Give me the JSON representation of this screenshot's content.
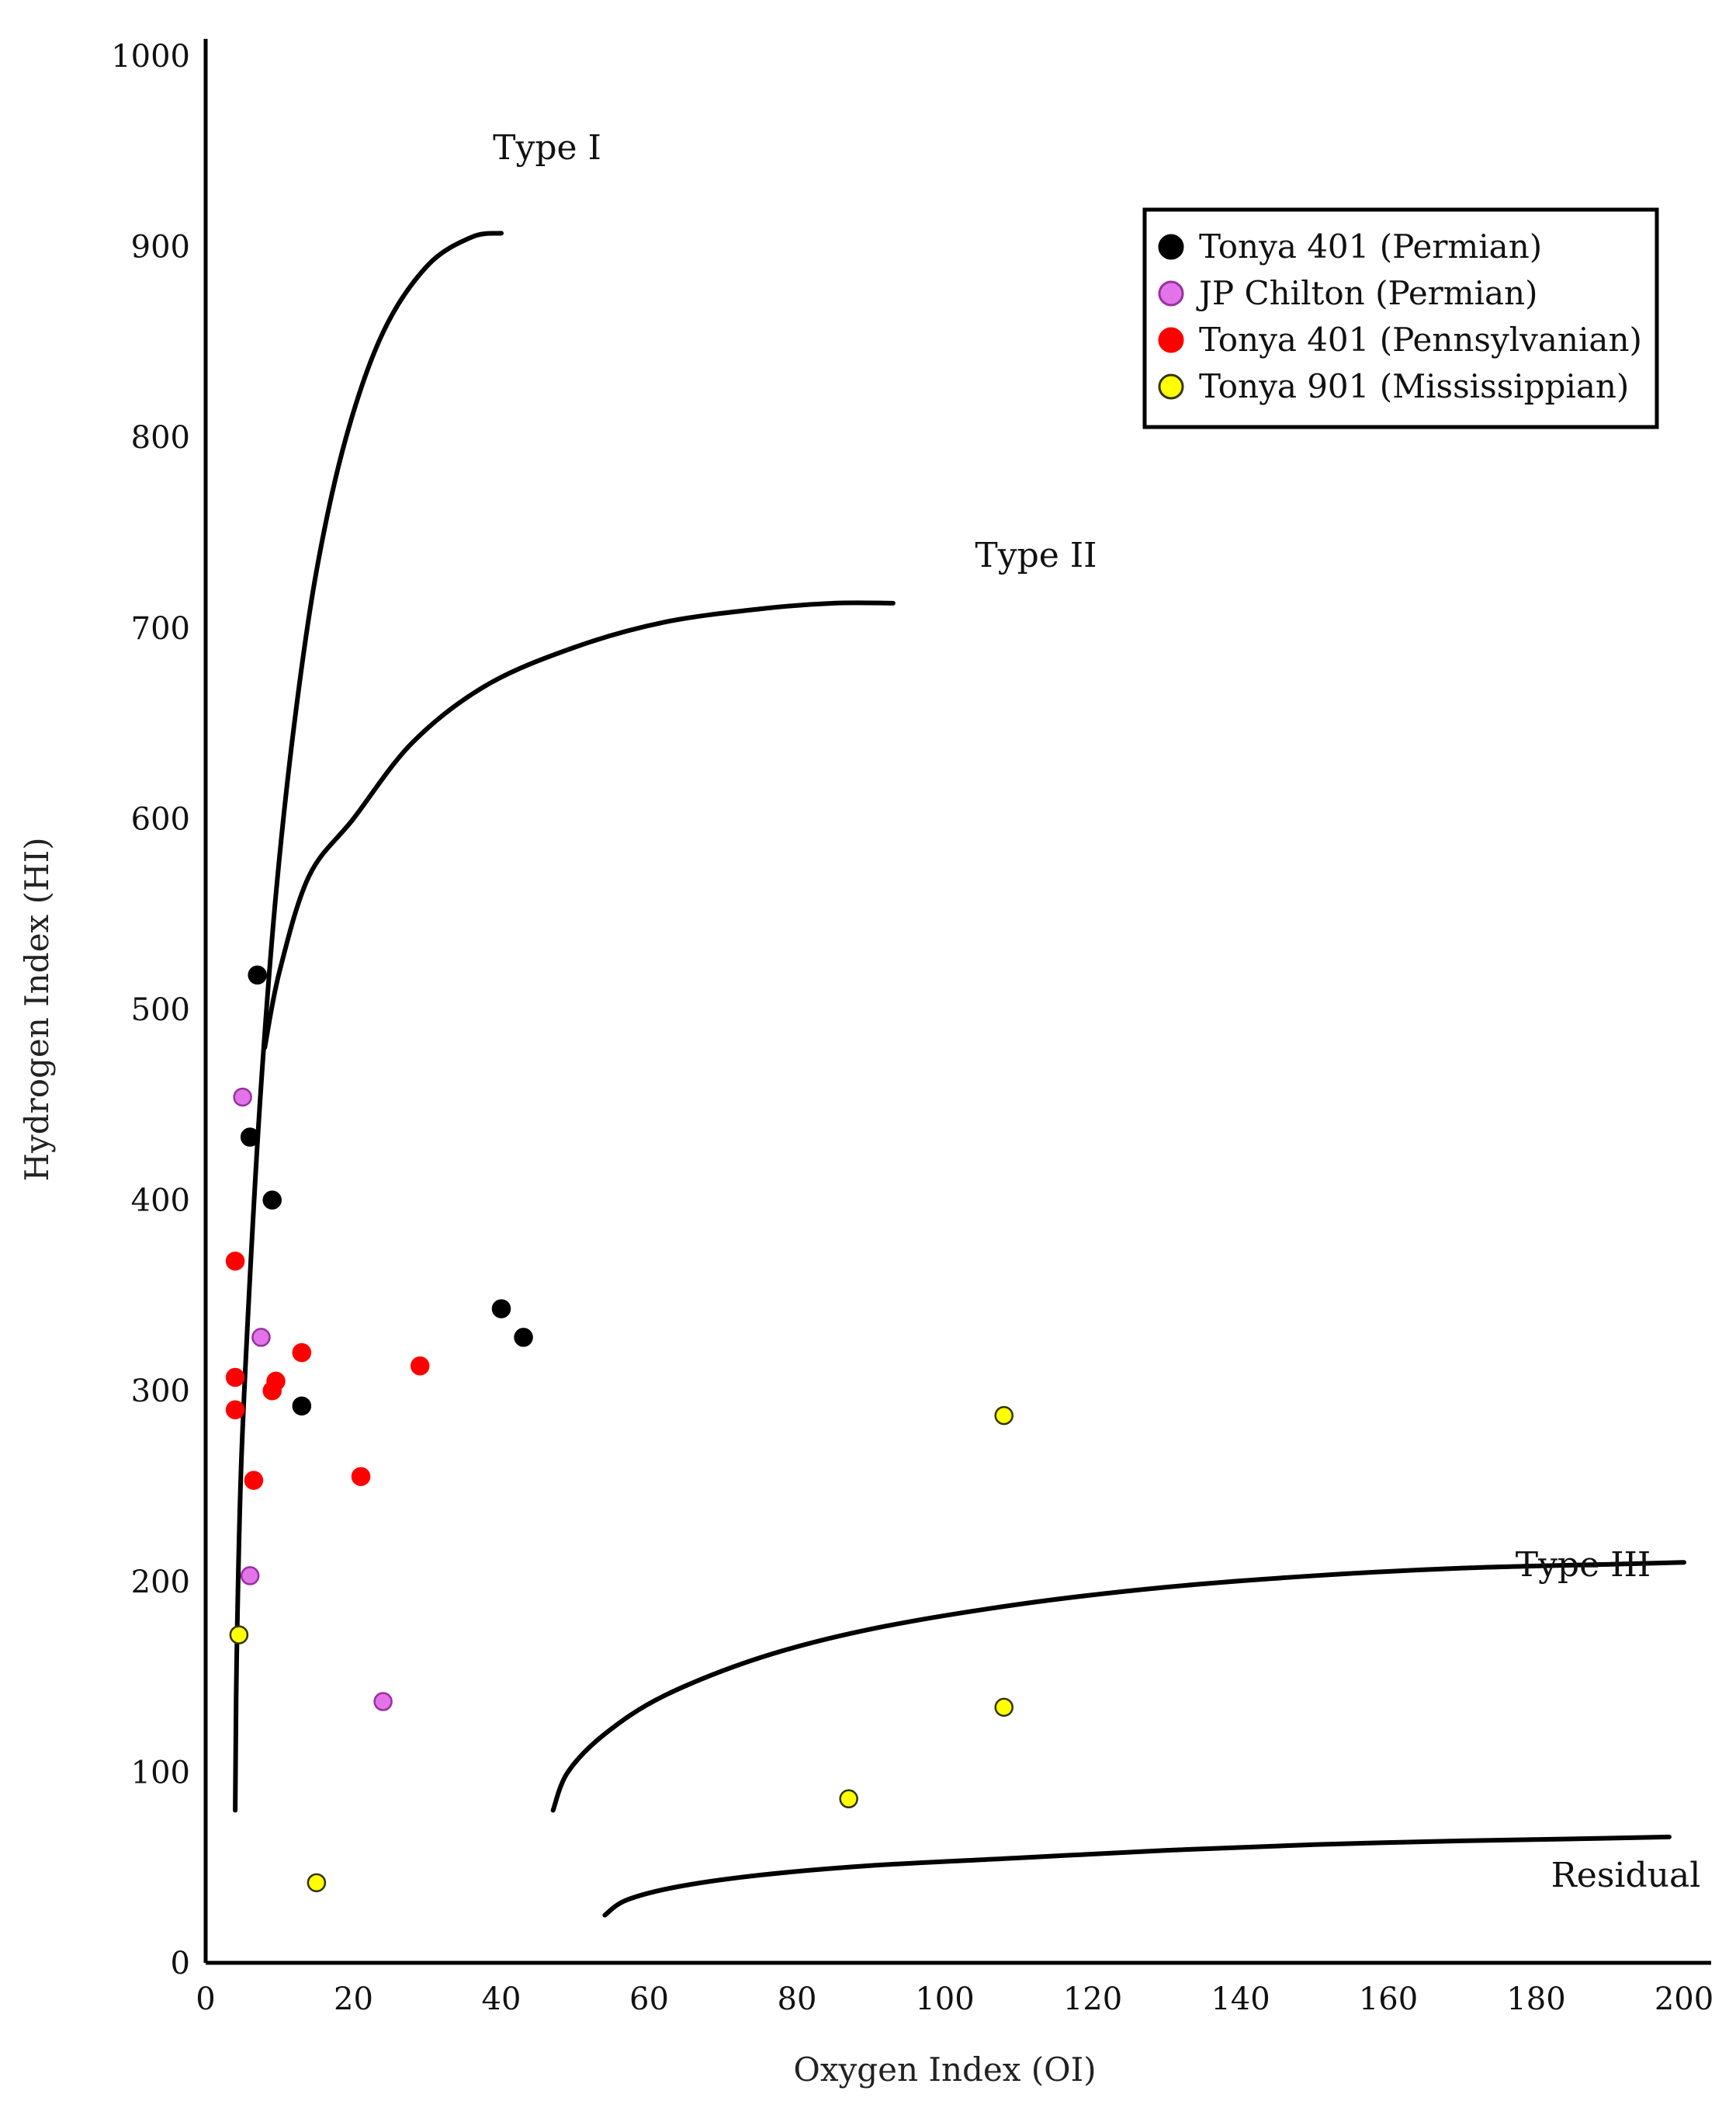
{
  "chart_data": {
    "type": "scatter",
    "title": "",
    "xlabel": "Oxygen Index (OI)",
    "ylabel": "Hydrogen Index (HI)",
    "xlim": [
      0,
      200
    ],
    "ylim": [
      0,
      1000
    ],
    "x_ticks": [
      0,
      20,
      40,
      60,
      80,
      100,
      120,
      140,
      160,
      180,
      200
    ],
    "y_ticks": [
      0,
      100,
      200,
      300,
      400,
      500,
      600,
      700,
      800,
      900,
      1000
    ],
    "grid": false,
    "legend_position": "top-right",
    "series": [
      {
        "name": "Tonya 401 (Permian)",
        "color": "#000000",
        "stroke": "#000000",
        "points": [
          [
            7,
            518
          ],
          [
            6,
            433
          ],
          [
            9,
            400
          ],
          [
            40,
            343
          ],
          [
            43,
            328
          ],
          [
            13,
            292
          ]
        ]
      },
      {
        "name": "JP Chilton (Permian)",
        "color": "#e373e8",
        "stroke": "#9a2fa0",
        "points": [
          [
            5,
            454
          ],
          [
            7.5,
            328
          ],
          [
            6,
            203
          ],
          [
            24,
            137
          ]
        ]
      },
      {
        "name": "Tonya 401 (Pennsylvanian)",
        "color": "#ff0000",
        "stroke": "#ff0000",
        "points": [
          [
            4,
            368
          ],
          [
            4,
            307
          ],
          [
            4,
            290
          ],
          [
            13,
            320
          ],
          [
            9.5,
            305
          ],
          [
            9,
            300
          ],
          [
            29,
            313
          ],
          [
            6.5,
            253
          ],
          [
            21,
            255
          ]
        ]
      },
      {
        "name": "Tonya 901 (Mississippian)",
        "color": "#ffff00",
        "stroke": "#333300",
        "points": [
          [
            108,
            287
          ],
          [
            4.5,
            172
          ],
          [
            108,
            134
          ],
          [
            87,
            86
          ],
          [
            15,
            42
          ]
        ]
      }
    ],
    "curves": [
      {
        "name": "Type I",
        "label": "Type I",
        "points": [
          [
            4,
            80
          ],
          [
            4.2,
            160
          ],
          [
            4.8,
            260
          ],
          [
            6,
            360
          ],
          [
            7.5,
            460
          ],
          [
            9.5,
            560
          ],
          [
            12,
            650
          ],
          [
            15,
            730
          ],
          [
            19,
            800
          ],
          [
            24,
            855
          ],
          [
            30,
            890
          ],
          [
            36,
            905
          ],
          [
            40,
            907
          ]
        ]
      },
      {
        "name": "Type II",
        "label": "Type II",
        "points": [
          [
            8,
            480
          ],
          [
            10,
            520
          ],
          [
            14,
            570
          ],
          [
            20,
            600
          ],
          [
            28,
            640
          ],
          [
            38,
            670
          ],
          [
            50,
            690
          ],
          [
            62,
            703
          ],
          [
            75,
            710
          ],
          [
            85,
            713
          ],
          [
            93,
            713
          ]
        ]
      },
      {
        "name": "Type III",
        "label": "Type III",
        "points": [
          [
            47,
            80
          ],
          [
            49,
            100
          ],
          [
            54,
            120
          ],
          [
            62,
            140
          ],
          [
            75,
            160
          ],
          [
            90,
            175
          ],
          [
            110,
            188
          ],
          [
            130,
            197
          ],
          [
            150,
            203
          ],
          [
            170,
            207
          ],
          [
            190,
            209
          ],
          [
            200,
            210
          ]
        ]
      },
      {
        "name": "Residual",
        "label": "Residual",
        "points": [
          [
            54,
            25
          ],
          [
            57,
            33
          ],
          [
            64,
            40
          ],
          [
            75,
            46
          ],
          [
            90,
            51
          ],
          [
            110,
            55
          ],
          [
            130,
            59
          ],
          [
            150,
            62
          ],
          [
            170,
            64
          ],
          [
            185,
            65
          ],
          [
            198,
            66
          ]
        ]
      }
    ]
  }
}
